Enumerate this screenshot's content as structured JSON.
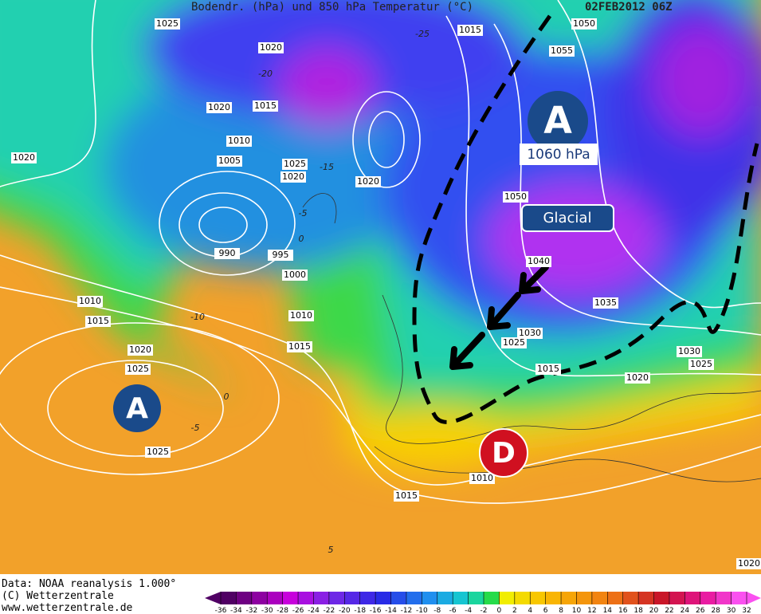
{
  "header": {
    "title": "Bodendr. (hPa) und 850 hPa Temperatur (°C)",
    "date": "02FEB2012 06Z"
  },
  "isobar_labels": [
    "1025",
    "1020",
    "1015",
    "1050",
    "1055",
    "1020",
    "1015",
    "1010",
    "1005",
    "1025",
    "1020",
    "1020",
    "1020",
    "1050",
    "1040",
    "990",
    "995",
    "1000",
    "1010",
    "1015",
    "1010",
    "1015",
    "1035",
    "1030",
    "1025",
    "1015",
    "1030",
    "1025",
    "1020",
    "1020",
    "1025",
    "1025",
    "1015",
    "1010",
    "1020"
  ],
  "isotherm_labels": [
    "-25",
    "-20",
    "-15",
    "-5",
    "0",
    "-10",
    "0",
    "-5",
    "5"
  ],
  "markers": [
    {
      "label": "A"
    },
    {
      "label": "A"
    },
    {
      "label": "D"
    }
  ],
  "annotations": [
    "1060 hPa",
    "Glacial"
  ],
  "footer": [
    "Data: NOAA reanalysis 1.000°",
    "(C) Wetterzentrale",
    "www.wetterzentrale.de"
  ],
  "colorbar": {
    "ticks": [
      -36,
      -34,
      -32,
      -30,
      -28,
      -26,
      -24,
      -22,
      -20,
      -18,
      -16,
      -14,
      -12,
      -10,
      -8,
      -6,
      -4,
      -2,
      0,
      2,
      4,
      6,
      8,
      10,
      12,
      14,
      16,
      18,
      20,
      22,
      24,
      26,
      28,
      30,
      32
    ]
  }
}
